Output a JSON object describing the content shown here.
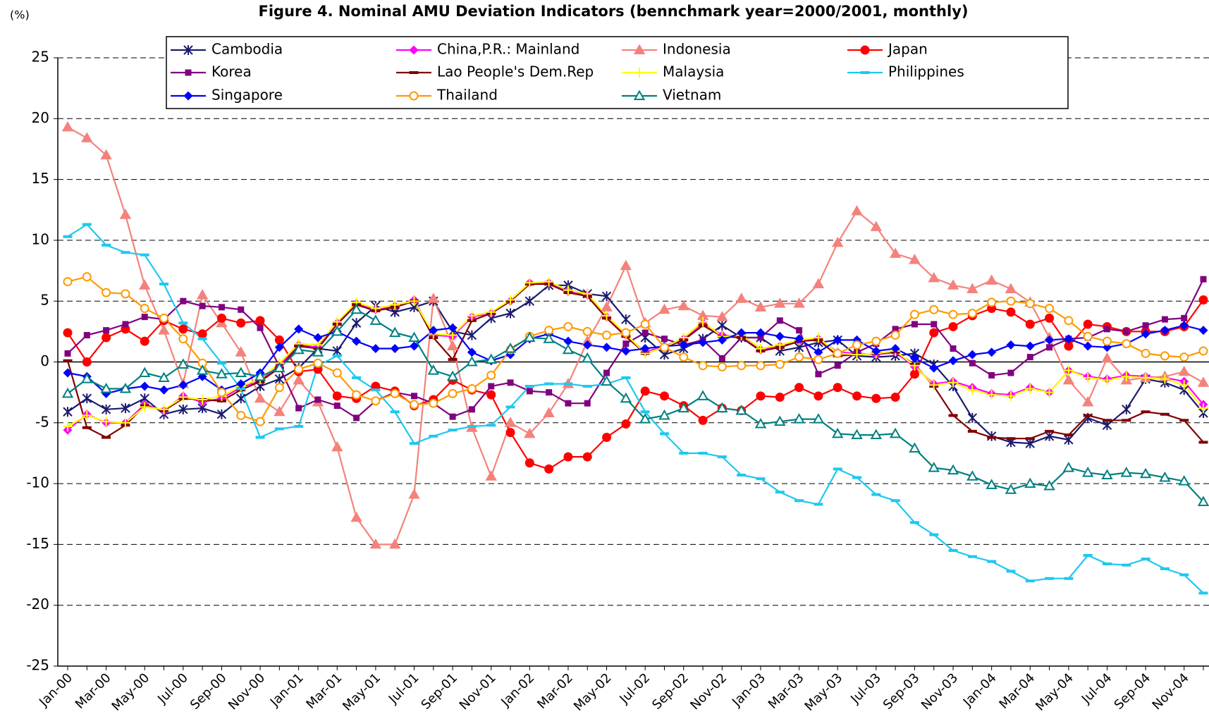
{
  "chart_data": {
    "type": "line",
    "title": "Figure 4. Nominal AMU Deviation Indicators (bennchmark year=2000/2001, monthly)",
    "y_label": "(%)",
    "ylim": [
      -25,
      25
    ],
    "yticks": [
      25,
      20,
      15,
      10,
      5,
      0,
      -5,
      -10,
      -15,
      -20,
      -25
    ],
    "grid": true,
    "legend": "top",
    "categories": [
      "Jan-00",
      null,
      "Mar-00",
      null,
      "May-00",
      null,
      "Jul-00",
      null,
      "Sep-00",
      null,
      "Nov-00",
      null,
      "Jan-01",
      null,
      "Mar-01",
      null,
      "May-01",
      null,
      "Jul-01",
      null,
      "Sep-01",
      null,
      "Nov-01",
      null,
      "Jan-02",
      null,
      "Mar-02",
      null,
      "May-02",
      null,
      "Jul-02",
      null,
      "Sep-02",
      null,
      "Nov-02",
      null,
      "Jan-03",
      null,
      "Mar-03",
      null,
      "May-03",
      null,
      "Jul-03",
      null,
      "Sep-03",
      null,
      "Nov-03",
      null,
      "Jan-04",
      null,
      "Mar-04",
      null,
      "May-04",
      null,
      "Jul-04",
      null,
      "Sep-04",
      null,
      "Nov-04",
      null
    ],
    "series": [
      {
        "name": "Cambodia",
        "color": "#1a1a6e",
        "marker": "asterisk",
        "values": [
          -4.1,
          -3.0,
          -3.9,
          -3.8,
          -3.0,
          -4.3,
          -3.9,
          -3.8,
          -4.3,
          -3.0,
          -2.0,
          -1.4,
          -0.5,
          1.1,
          0.9,
          3.2,
          4.6,
          4.1,
          4.5,
          5.0,
          2.5,
          2.2,
          3.6,
          4.0,
          5.0,
          6.3,
          6.3,
          5.6,
          5.4,
          3.5,
          2.0,
          0.6,
          1.1,
          1.9,
          3.0,
          2.0,
          2.0,
          0.9,
          1.2,
          1.6,
          1.8,
          0.5,
          0.4,
          0.5,
          0.7,
          -0.2,
          -2.0,
          -4.6,
          -6.1,
          -6.6,
          -6.7,
          -6.1,
          -6.4,
          -4.6,
          -5.2,
          -3.9,
          -1.4,
          -1.7,
          -2.3,
          -4.2
        ]
      },
      {
        "name": "China,P.R.: Mainland",
        "color": "#ff00ff",
        "marker": "diamond",
        "values": [
          -5.6,
          -4.3,
          -5.0,
          -5.0,
          -3.5,
          -4.0,
          -2.8,
          -3.3,
          -3.0,
          -2.1,
          -1.5,
          -0.3,
          1.4,
          1.2,
          3.2,
          4.8,
          4.3,
          4.6,
          5.1,
          2.2,
          2.1,
          3.7,
          4.0,
          5.0,
          6.5,
          6.5,
          5.8,
          5.5,
          3.7,
          2.2,
          0.8,
          1.3,
          1.9,
          3.2,
          2.2,
          2.1,
          1.0,
          1.3,
          1.7,
          1.9,
          0.8,
          0.7,
          0.6,
          0.8,
          -0.4,
          -1.8,
          -1.6,
          -2.1,
          -2.6,
          -2.7,
          -2.1,
          -2.5,
          -0.7,
          -1.2,
          -1.4,
          -1.1,
          -1.2,
          -1.3,
          -1.6,
          -3.5
        ]
      },
      {
        "name": "Indonesia",
        "color": "#f4827c",
        "marker": "triangle",
        "values": [
          19.3,
          18.4,
          17.0,
          12.1,
          6.3,
          2.6,
          -1.8,
          5.5,
          3.2,
          0.8,
          -3.0,
          -4.1,
          -1.5,
          -3.3,
          -7.0,
          -12.8,
          -15.0,
          -15.0,
          -10.9,
          5.2,
          1.3,
          -5.4,
          -9.4,
          -5.0,
          -5.9,
          -4.2,
          -1.8,
          1.7,
          4.5,
          7.9,
          3.2,
          4.3,
          4.6,
          3.8,
          3.7,
          5.2,
          4.5,
          4.8,
          4.8,
          6.4,
          9.8,
          12.4,
          11.1,
          8.9,
          8.4,
          6.9,
          6.3,
          6.0,
          6.7,
          6.0,
          4.9,
          2.0,
          -1.5,
          -3.3,
          0.3,
          -1.5,
          -1.3,
          -1.2,
          -0.8,
          -1.7
        ]
      },
      {
        "name": "Japan",
        "color": "#ff0000",
        "marker": "circle",
        "values": [
          2.4,
          0,
          2.0,
          2.7,
          1.7,
          3.4,
          2.7,
          2.3,
          3.6,
          3.2,
          3.4,
          1.8,
          -0.8,
          -0.6,
          -2.8,
          -3.0,
          -2.0,
          -2.4,
          -3.6,
          -3.1,
          -1.5,
          -2.3,
          -2.7,
          -5.8,
          -8.3,
          -8.8,
          -7.8,
          -7.8,
          -6.2,
          -5.1,
          -2.4,
          -2.8,
          -3.6,
          -4.8,
          -3.8,
          -4.0,
          -2.8,
          -2.9,
          -2.1,
          -2.8,
          -2.1,
          -2.8,
          -3.0,
          -2.9,
          -1.0,
          2.4,
          2.9,
          3.8,
          4.4,
          4.1,
          3.1,
          3.6,
          1.3,
          3.1,
          2.9,
          2.5,
          2.5,
          2.5,
          2.9,
          5.1
        ]
      },
      {
        "name": "Korea",
        "color": "#800080",
        "marker": "square",
        "values": [
          0.7,
          2.2,
          2.6,
          3.1,
          3.7,
          3.5,
          5.0,
          4.6,
          4.5,
          4.3,
          2.8,
          -0.4,
          -3.8,
          -3.1,
          -3.6,
          -4.6,
          -3.2,
          -2.5,
          -2.8,
          -3.4,
          -4.5,
          -3.9,
          -2.0,
          -1.7,
          -2.4,
          -2.5,
          -3.4,
          -3.4,
          -0.9,
          1.5,
          2.4,
          1.9,
          1.4,
          1.8,
          0.3,
          2.0,
          2.0,
          3.4,
          2.6,
          -1.0,
          -0.3,
          0.8,
          1.5,
          2.7,
          3.1,
          3.1,
          1.1,
          -0.1,
          -1.1,
          -0.9,
          0.4,
          1.2,
          1.9,
          2.0,
          2.7,
          2.5,
          3.0,
          3.5,
          3.6,
          6.8
        ]
      },
      {
        "name": "Lao People's Dem.Rep",
        "color": "#800000",
        "marker": "dash",
        "values": [
          0.1,
          -5.4,
          -6.2,
          -5.2,
          -3.6,
          -4.0,
          -3.0,
          -3.1,
          -3.2,
          -2.3,
          -1.6,
          -0.5,
          1.3,
          1.1,
          3.1,
          4.7,
          4.2,
          4.5,
          5.0,
          2.0,
          0.2,
          3.4,
          4.0,
          5.0,
          6.4,
          6.4,
          5.7,
          5.4,
          3.6,
          2.1,
          0.7,
          1.2,
          1.8,
          3.0,
          2.1,
          2.0,
          0.9,
          1.2,
          1.7,
          1.8,
          0.5,
          0.6,
          0.7,
          0.8,
          -0.2,
          -2.0,
          -4.4,
          -5.7,
          -6.2,
          -6.3,
          -6.3,
          -5.7,
          -6.0,
          -4.4,
          -4.8,
          -4.8,
          -4.1,
          -4.3,
          -4.8,
          -6.6
        ]
      },
      {
        "name": "Malaysia",
        "color": "#ffff00",
        "marker": "plus",
        "values": [
          -5.3,
          -4.4,
          -4.9,
          -5.0,
          -3.7,
          -3.9,
          -2.9,
          -3.1,
          -2.8,
          -2.0,
          -1.4,
          -0.1,
          1.5,
          1.4,
          3.3,
          4.9,
          4.4,
          4.7,
          5.0,
          2.3,
          2.2,
          3.8,
          4.1,
          5.1,
          6.5,
          6.6,
          5.9,
          5.6,
          3.8,
          2.3,
          0.7,
          1.2,
          2.0,
          3.3,
          2.1,
          2.2,
          1.1,
          1.4,
          1.8,
          2.0,
          0.7,
          0.6,
          0.7,
          0.9,
          -0.3,
          -1.9,
          -1.7,
          -2.3,
          -2.7,
          -2.8,
          -2.2,
          -2.5,
          -0.7,
          -1.3,
          -1.5,
          -1.2,
          -1.3,
          -1.4,
          -1.9,
          -3.8
        ]
      },
      {
        "name": "Philippines",
        "color": "#1ec8f0",
        "marker": "dash",
        "values": [
          10.3,
          11.3,
          9.6,
          9.0,
          8.8,
          6.4,
          3.2,
          1.9,
          -0.1,
          -2.2,
          -6.2,
          -5.5,
          -5.3,
          -0.3,
          0.5,
          -1.3,
          -2.3,
          -4.1,
          -6.7,
          -6.1,
          -5.6,
          -5.3,
          -5.2,
          -3.7,
          -2.0,
          -1.8,
          -1.8,
          -2.0,
          -1.8,
          -1.3,
          -4.1,
          -5.9,
          -7.5,
          -7.5,
          -7.8,
          -9.3,
          -9.6,
          -10.7,
          -11.4,
          -11.7,
          -8.8,
          -9.5,
          -10.9,
          -11.4,
          -13.2,
          -14.2,
          -15.5,
          -16.0,
          -16.4,
          -17.2,
          -18.0,
          -17.8,
          -17.8,
          -15.9,
          -16.6,
          -16.7,
          -16.2,
          -17.0,
          -17.5,
          -19.0
        ]
      },
      {
        "name": "Singapore",
        "color": "#0000ff",
        "marker": "diamond",
        "values": [
          -0.9,
          -1.2,
          -2.6,
          -2.2,
          -2.0,
          -2.3,
          -1.9,
          -1.2,
          -2.3,
          -1.8,
          -0.9,
          1.2,
          2.7,
          2.0,
          2.5,
          1.7,
          1.1,
          1.1,
          1.3,
          2.6,
          2.8,
          0.8,
          0.1,
          0.6,
          1.9,
          2.3,
          1.7,
          1.4,
          1.2,
          0.9,
          1.1,
          1.3,
          1.4,
          1.6,
          1.8,
          2.4,
          2.4,
          2.1,
          1.9,
          0.8,
          1.8,
          1.8,
          0.9,
          1.1,
          0.3,
          -0.5,
          0.1,
          0.6,
          0.8,
          1.4,
          1.3,
          1.8,
          1.9,
          1.3,
          1.2,
          1.5,
          2.3,
          2.6,
          3.0,
          2.6
        ]
      },
      {
        "name": "Thailand",
        "color": "#ff9900",
        "marker": "open-circle",
        "values": [
          6.6,
          7.0,
          5.7,
          5.6,
          4.4,
          3.6,
          1.9,
          -0.1,
          -2.5,
          -4.4,
          -4.9,
          -2.1,
          -0.6,
          -0.1,
          -0.9,
          -2.7,
          -3.2,
          -2.6,
          -3.5,
          -3.4,
          -2.6,
          -2.2,
          -1.1,
          1.0,
          2.1,
          2.6,
          2.9,
          2.5,
          2.2,
          2.4,
          3.1,
          1.2,
          0.4,
          -0.3,
          -0.4,
          -0.3,
          -0.3,
          -0.2,
          0.4,
          0.2,
          0.7,
          1.4,
          1.7,
          2.2,
          3.9,
          4.3,
          3.9,
          4.0,
          4.9,
          5.0,
          4.8,
          4.4,
          3.4,
          2.1,
          1.7,
          1.5,
          0.7,
          0.5,
          0.4,
          0.9
        ]
      },
      {
        "name": "Vietnam",
        "color": "#008080",
        "marker": "open-triangle",
        "values": [
          -2.6,
          -1.4,
          -2.2,
          -2.2,
          -0.9,
          -1.3,
          -0.2,
          -0.7,
          -1.0,
          -0.9,
          -1.2,
          -0.5,
          1.0,
          0.8,
          2.5,
          4.3,
          3.4,
          2.4,
          2.0,
          -0.7,
          -1.2,
          0.0,
          0.2,
          1.1,
          2.0,
          1.9,
          1.0,
          0.3,
          -1.6,
          -3.0,
          -4.7,
          -4.4,
          -3.8,
          -2.8,
          -3.8,
          -4.0,
          -5.1,
          -4.9,
          -4.7,
          -4.7,
          -5.9,
          -6.0,
          -6.0,
          -5.9,
          -7.1,
          -8.7,
          -8.9,
          -9.4,
          -10.1,
          -10.5,
          -10.0,
          -10.2,
          -8.7,
          -9.1,
          -9.3,
          -9.1,
          -9.2,
          -9.5,
          -9.8,
          -11.5
        ]
      }
    ]
  }
}
